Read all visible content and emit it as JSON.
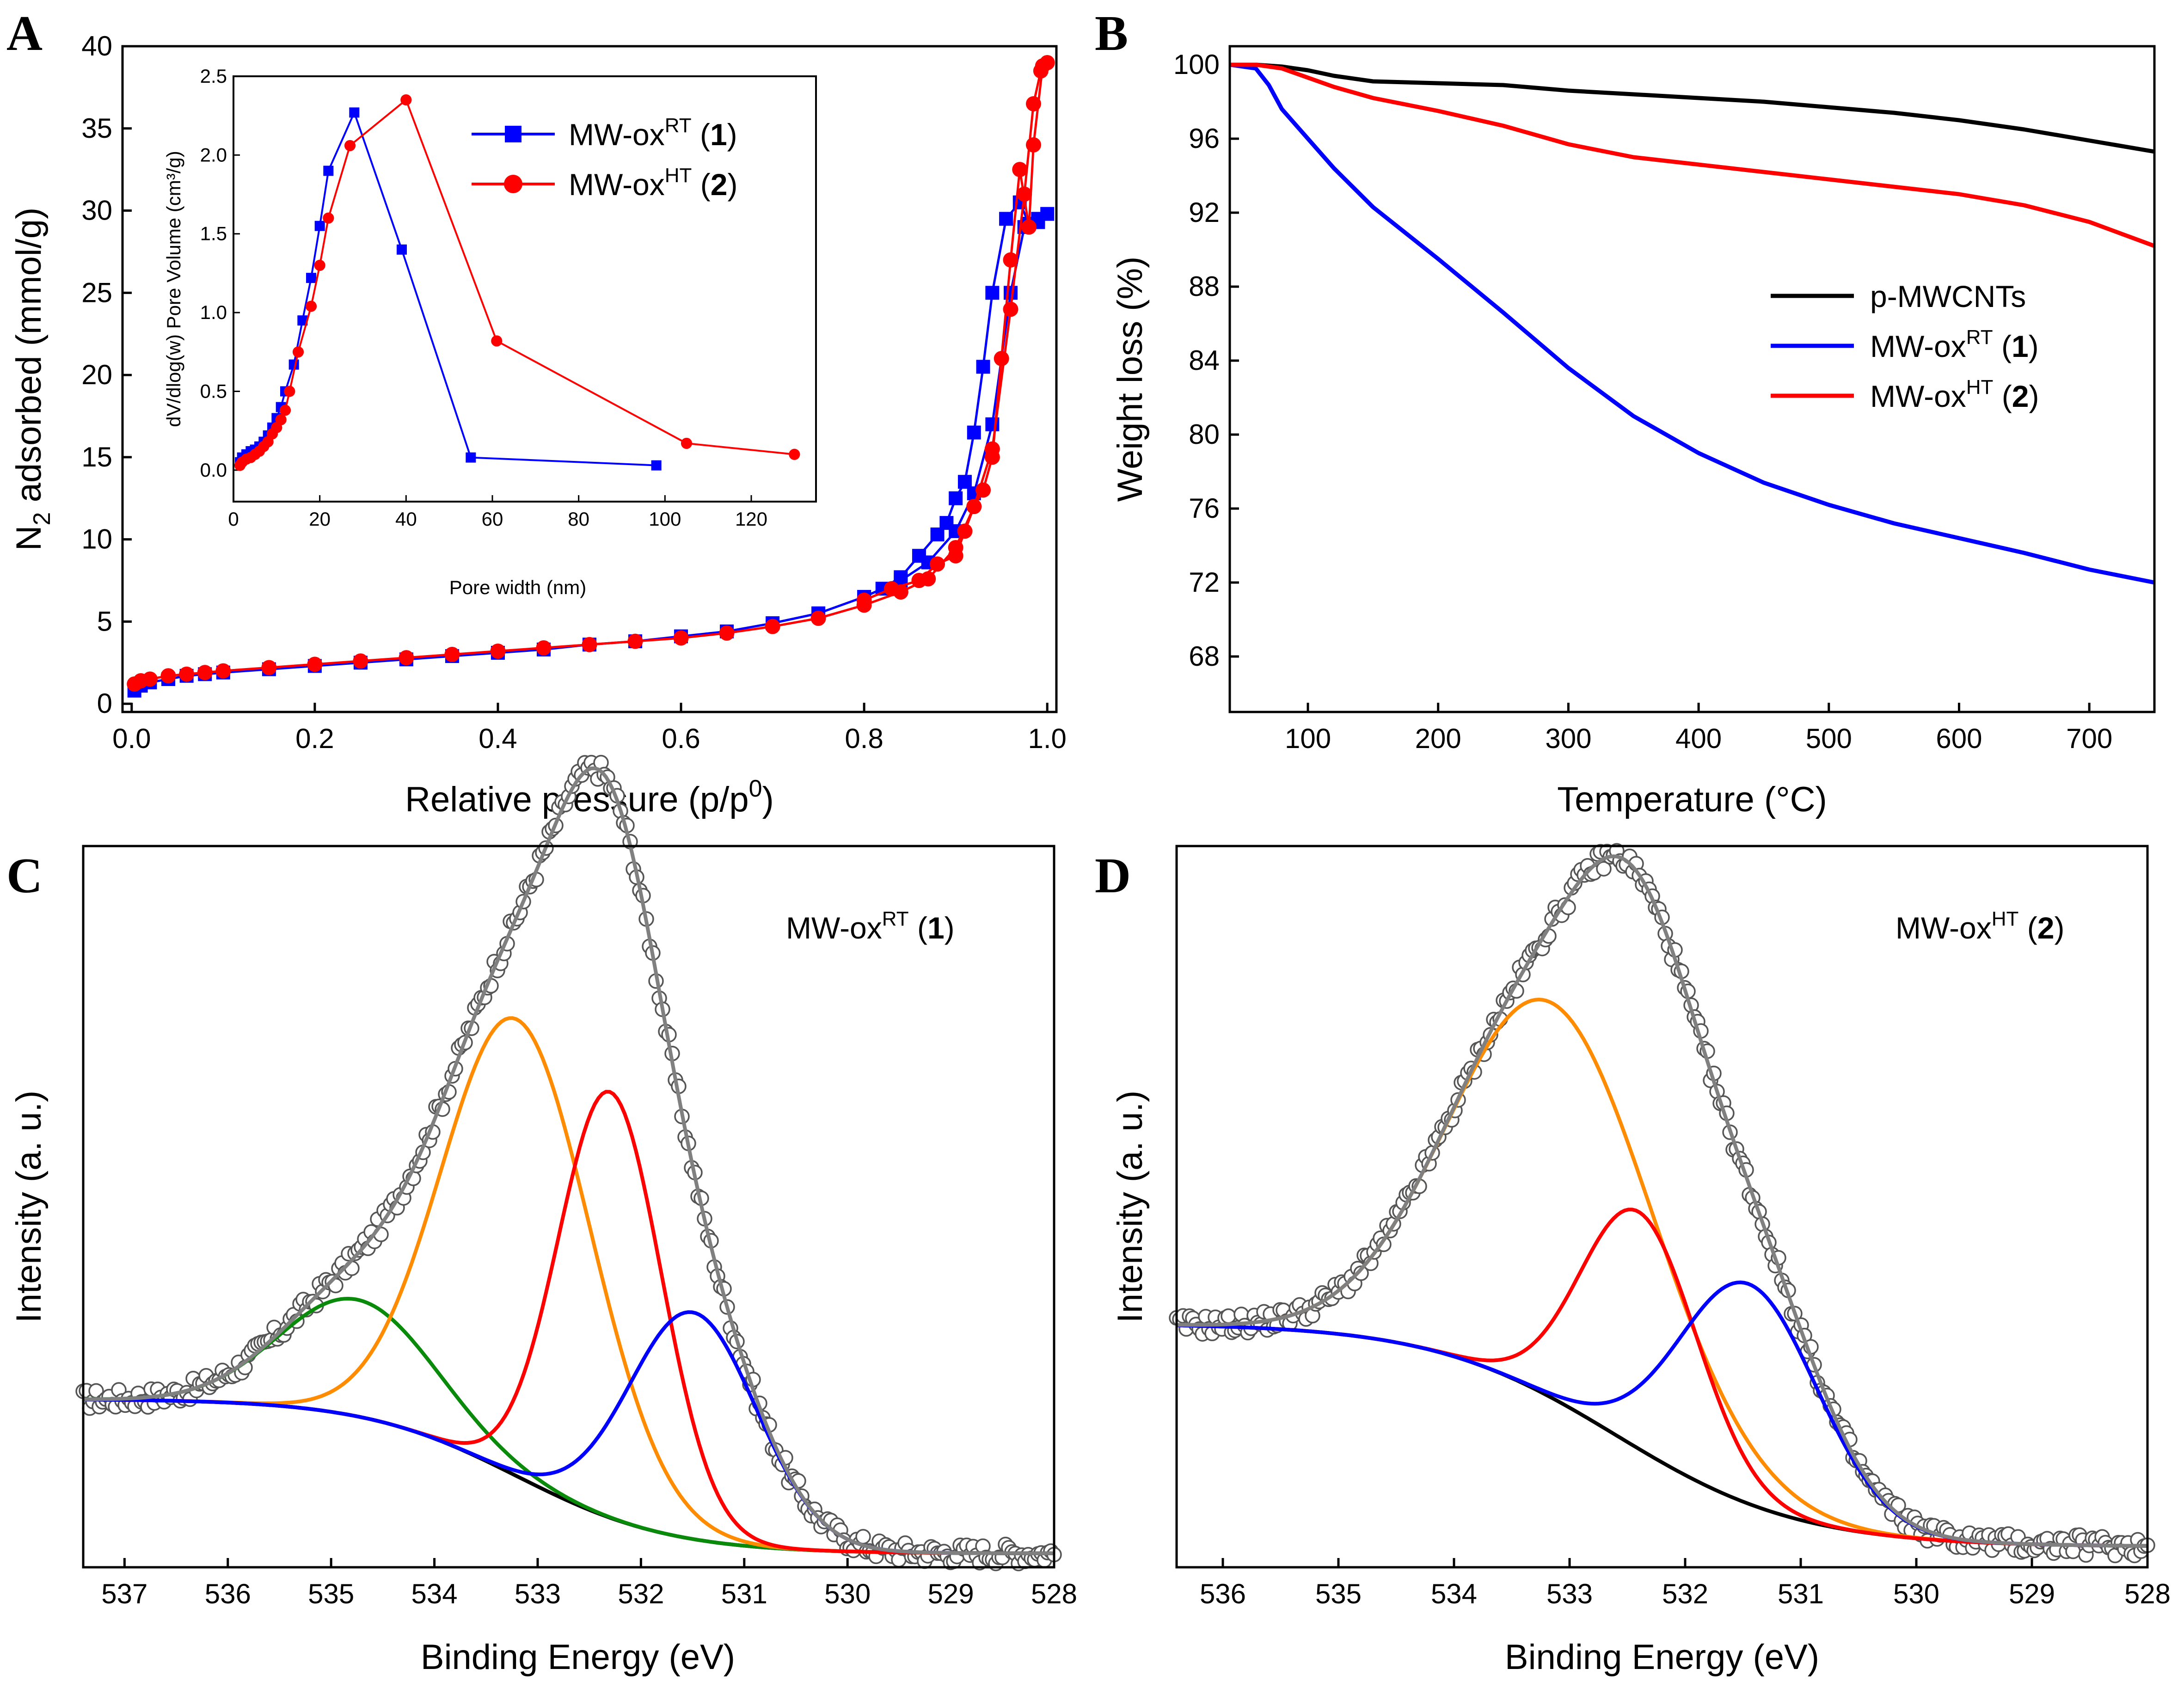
{
  "figure_labels": {
    "a": "A",
    "b": "B",
    "c": "C",
    "d": "D"
  },
  "chart_data": [
    {
      "panel": "A",
      "type": "line",
      "title": "",
      "xlabel_main": "Relative pressure (p/p",
      "xlabel_sup": "0",
      "xlabel_end": ")",
      "ylabel_main": "N",
      "ylabel_sub": "2",
      "ylabel_end": " adsorbed (mmol/g)",
      "xlim": [
        -0.01,
        1.01
      ],
      "ylim": [
        -0.5,
        40
      ],
      "xticks": [
        0.0,
        0.2,
        0.4,
        0.6,
        0.8,
        1.0
      ],
      "xtick_labels": [
        "0.0",
        "0.2",
        "0.4",
        "0.6",
        "0.8",
        "1.0"
      ],
      "yticks": [
        0,
        5,
        10,
        15,
        20,
        25,
        30,
        35,
        40
      ],
      "ytick_labels": [
        "0",
        "5",
        "10",
        "15",
        "20",
        "25",
        "30",
        "35",
        "40"
      ],
      "legend": [
        {
          "base": "MW-ox",
          "sup": "RT",
          "open": " (",
          "num": "1",
          "close": ")",
          "color": "#0000ff",
          "marker": "square"
        },
        {
          "base": "MW-ox",
          "sup": "HT",
          "open": " (",
          "num": "2",
          "close": ")",
          "color": "#ff0000",
          "marker": "circle"
        }
      ],
      "series": [
        {
          "name": "MW-ox RT (1) adsorption",
          "color": "#0000ff",
          "marker": "square",
          "x": [
            0.003,
            0.01,
            0.02,
            0.04,
            0.06,
            0.08,
            0.1,
            0.15,
            0.2,
            0.25,
            0.3,
            0.35,
            0.4,
            0.45,
            0.5,
            0.55,
            0.6,
            0.65,
            0.7,
            0.75,
            0.8,
            0.84,
            0.87,
            0.9,
            0.92,
            0.94,
            0.96,
            0.975,
            0.99,
            1.0
          ],
          "y": [
            0.8,
            1.1,
            1.3,
            1.5,
            1.7,
            1.8,
            1.9,
            2.1,
            2.3,
            2.5,
            2.7,
            2.9,
            3.1,
            3.3,
            3.6,
            3.8,
            4.1,
            4.4,
            4.9,
            5.5,
            6.5,
            7.5,
            8.6,
            10.5,
            12.8,
            17,
            25,
            29,
            29.5,
            29.8
          ]
        },
        {
          "name": "MW-ox RT (1) desorption",
          "color": "#0000ff",
          "marker": "square",
          "x": [
            0.99,
            0.98,
            0.97,
            0.955,
            0.94,
            0.93,
            0.92,
            0.91,
            0.9,
            0.89,
            0.88,
            0.86,
            0.84,
            0.82,
            0.8
          ],
          "y": [
            29.3,
            29.2,
            30.5,
            29.5,
            25,
            20.5,
            16.5,
            13.5,
            12.5,
            11,
            10.3,
            9,
            7.7,
            7,
            6.5
          ]
        },
        {
          "name": "MW-ox HT (2) adsorption",
          "color": "#ff0000",
          "marker": "circle",
          "x": [
            0.003,
            0.01,
            0.02,
            0.04,
            0.06,
            0.08,
            0.1,
            0.15,
            0.2,
            0.25,
            0.3,
            0.35,
            0.4,
            0.45,
            0.5,
            0.55,
            0.6,
            0.65,
            0.7,
            0.75,
            0.8,
            0.84,
            0.87,
            0.9,
            0.92,
            0.94,
            0.96,
            0.975,
            0.985,
            0.993,
            1.0
          ],
          "y": [
            1.2,
            1.4,
            1.5,
            1.7,
            1.8,
            1.9,
            2.0,
            2.2,
            2.4,
            2.6,
            2.8,
            3.0,
            3.2,
            3.4,
            3.6,
            3.8,
            4.0,
            4.3,
            4.7,
            5.2,
            6.0,
            6.8,
            7.6,
            9.5,
            12,
            15.5,
            24,
            31,
            36.5,
            38.5,
            39
          ]
        },
        {
          "name": "MW-ox HT (2) desorption",
          "color": "#ff0000",
          "marker": "circle",
          "x": [
            0.995,
            0.985,
            0.98,
            0.97,
            0.96,
            0.95,
            0.94,
            0.93,
            0.92,
            0.91,
            0.9,
            0.88,
            0.86,
            0.83,
            0.8
          ],
          "y": [
            38.8,
            34,
            29,
            32.5,
            27,
            21,
            15,
            13,
            12,
            10.5,
            9,
            8.5,
            7.5,
            7,
            6.3
          ]
        }
      ]
    },
    {
      "panel": "A-inset",
      "type": "line",
      "xlabel": "Pore width (nm)",
      "ylabel": "dV/dlog(w) Pore Volume (cm³/g)",
      "xlim": [
        0,
        135
      ],
      "ylim": [
        -0.2,
        2.5
      ],
      "xticks": [
        0,
        20,
        40,
        60,
        80,
        100,
        120
      ],
      "xtick_labels": [
        "0",
        "20",
        "40",
        "60",
        "80",
        "100",
        "120"
      ],
      "yticks": [
        0.0,
        0.5,
        1.0,
        1.5,
        2.0,
        2.5
      ],
      "ytick_labels": [
        "0.0",
        "0.5",
        "1.0",
        "1.5",
        "2.0",
        "2.5"
      ],
      "series": [
        {
          "name": "MW-ox RT (1)",
          "color": "#0000ff",
          "marker": "square",
          "x": [
            1.5,
            2,
            3,
            4,
            5,
            6,
            7,
            8,
            9,
            10,
            11,
            12,
            14,
            16,
            18,
            20,
            22,
            28,
            39,
            55,
            98
          ],
          "y": [
            0.05,
            0.08,
            0.1,
            0.12,
            0.13,
            0.15,
            0.18,
            0.22,
            0.27,
            0.33,
            0.4,
            0.5,
            0.67,
            0.95,
            1.22,
            1.55,
            1.9,
            2.27,
            1.4,
            0.08,
            0.03
          ]
        },
        {
          "name": "MW-ox HT (2)",
          "color": "#ff0000",
          "marker": "circle",
          "x": [
            1.5,
            2,
            3,
            4,
            5,
            6,
            7,
            8,
            9,
            10,
            11,
            12,
            13,
            15,
            18,
            20,
            22,
            27,
            40,
            61,
            105,
            130
          ],
          "y": [
            0.03,
            0.05,
            0.07,
            0.08,
            0.1,
            0.12,
            0.15,
            0.18,
            0.23,
            0.27,
            0.32,
            0.38,
            0.5,
            0.75,
            1.04,
            1.3,
            1.6,
            2.06,
            2.35,
            0.82,
            0.17,
            0.1
          ]
        }
      ]
    },
    {
      "panel": "B",
      "type": "line",
      "xlabel": "Temperature (°C)",
      "ylabel": "Weight loss (%)",
      "xlim": [
        40,
        750
      ],
      "ylim": [
        65,
        101
      ],
      "xticks": [
        100,
        200,
        300,
        400,
        500,
        600,
        700
      ],
      "xtick_labels": [
        "100",
        "200",
        "300",
        "400",
        "500",
        "600",
        "700"
      ],
      "yticks": [
        68,
        72,
        76,
        80,
        84,
        88,
        92,
        96,
        100
      ],
      "ytick_labels": [
        "68",
        "72",
        "76",
        "80",
        "84",
        "88",
        "92",
        "96",
        "100"
      ],
      "legend": [
        {
          "base": "p-MWCNTs",
          "sup": "",
          "open": "",
          "num": "",
          "close": "",
          "color": "#000000"
        },
        {
          "base": "MW-ox",
          "sup": "RT",
          "open": " (",
          "num": "1",
          "close": ")",
          "color": "#0000ff"
        },
        {
          "base": "MW-ox",
          "sup": "HT",
          "open": " (",
          "num": "2",
          "close": ")",
          "color": "#ff0000"
        }
      ],
      "series": [
        {
          "name": "p-MWCNTs",
          "color": "#000000",
          "x": [
            40,
            60,
            80,
            100,
            120,
            150,
            200,
            250,
            300,
            350,
            400,
            450,
            500,
            550,
            600,
            650,
            700,
            750
          ],
          "y": [
            100,
            100,
            99.9,
            99.7,
            99.4,
            99.1,
            99.0,
            98.9,
            98.6,
            98.4,
            98.2,
            98.0,
            97.7,
            97.4,
            97.0,
            96.5,
            95.9,
            95.3
          ]
        },
        {
          "name": "MW-ox RT (1)",
          "color": "#0000ff",
          "x": [
            40,
            60,
            70,
            80,
            100,
            120,
            150,
            200,
            250,
            300,
            350,
            400,
            450,
            500,
            550,
            600,
            650,
            700,
            750
          ],
          "y": [
            100,
            99.8,
            98.9,
            97.6,
            96.0,
            94.4,
            92.3,
            89.5,
            86.6,
            83.6,
            81.0,
            79.0,
            77.4,
            76.2,
            75.2,
            74.4,
            73.6,
            72.7,
            72.0
          ]
        },
        {
          "name": "MW-ox HT (2)",
          "color": "#ff0000",
          "x": [
            40,
            60,
            80,
            100,
            120,
            150,
            200,
            250,
            300,
            350,
            400,
            450,
            500,
            550,
            600,
            650,
            700,
            750
          ],
          "y": [
            100,
            100,
            99.8,
            99.3,
            98.8,
            98.2,
            97.5,
            96.7,
            95.7,
            95.0,
            94.6,
            94.2,
            93.8,
            93.4,
            93.0,
            92.4,
            91.5,
            90.2
          ]
        }
      ]
    },
    {
      "panel": "C",
      "type": "line",
      "annotation": {
        "base": "MW-ox",
        "sup": "RT",
        "open": " (",
        "num": "1",
        "close": ")"
      },
      "xlabel": "Binding Energy (eV)",
      "ylabel": "Intensity (a. u.)",
      "xlim": [
        537.4,
        528.0
      ],
      "ylim": [
        0,
        1.05
      ],
      "xticks": [
        537,
        536,
        535,
        534,
        533,
        532,
        531,
        530,
        529,
        528
      ],
      "xtick_labels": [
        "537",
        "536",
        "535",
        "534",
        "533",
        "532",
        "531",
        "530",
        "529",
        "528"
      ],
      "background": {
        "low": 0.02,
        "high": 0.245,
        "center": 533.2,
        "width": 0.75
      },
      "components": [
        {
          "name": "green",
          "color": "#0a8a0a",
          "center": 534.75,
          "amplitude": 0.17,
          "sigma": 0.75
        },
        {
          "name": "orange",
          "color": "#ff8c00",
          "center": 533.2,
          "amplitude": 0.665,
          "sigma": 0.72
        },
        {
          "name": "red",
          "color": "#ff0000",
          "center": 532.3,
          "amplitude": 0.62,
          "sigma": 0.5
        },
        {
          "name": "blue",
          "color": "#0000ff",
          "center": 531.5,
          "amplitude": 0.33,
          "sigma": 0.62
        }
      ],
      "envelope_color": "#808080",
      "data_color": "#555555"
    },
    {
      "panel": "D",
      "type": "line",
      "annotation": {
        "base": "MW-ox",
        "sup": "HT",
        "open": " (",
        "num": "2",
        "close": ")"
      },
      "xlabel": "Binding Energy (eV)",
      "ylabel": "Intensity (a. u.)",
      "xlim": [
        536.4,
        528.0
      ],
      "ylim": [
        0,
        1.05
      ],
      "xticks": [
        536,
        535,
        534,
        533,
        532,
        531,
        530,
        529,
        528
      ],
      "xtick_labels": [
        "536",
        "535",
        "534",
        "533",
        "532",
        "531",
        "530",
        "529",
        "528"
      ],
      "background": {
        "low": 0.03,
        "high": 0.355,
        "center": 532.6,
        "width": 0.8
      },
      "components": [
        {
          "name": "orange",
          "color": "#ff8c00",
          "center": 533.15,
          "amplitude": 0.575,
          "sigma": 0.88
        },
        {
          "name": "red",
          "color": "#ff0000",
          "center": 532.4,
          "amplitude": 0.345,
          "sigma": 0.5
        },
        {
          "name": "blue",
          "color": "#0000ff",
          "center": 531.45,
          "amplitude": 0.32,
          "sigma": 0.6
        }
      ],
      "envelope_color": "#808080",
      "data_color": "#555555"
    }
  ]
}
